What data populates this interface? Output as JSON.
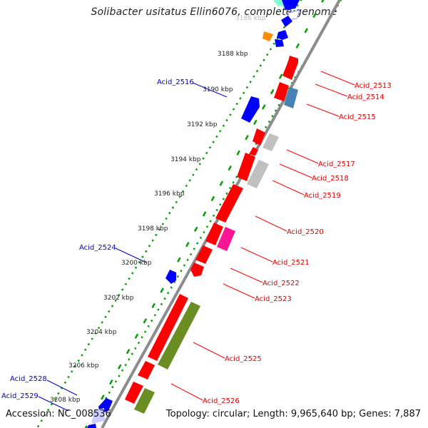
{
  "title": "Solibacter usitatus Ellin6076, complete genome",
  "accession": "Accession: NC_008536",
  "summary": "Topology: circular; Length: 9,965,640 bp; Genes: 7,887",
  "colors": {
    "backbone": "#8c8c8c",
    "forward_gene": "#0000ff",
    "reverse_gene": "#ff0000",
    "tick": "#00a000",
    "label_forward": "#0000cc",
    "label_reverse": "#dd0000",
    "feature_green": "#6b8e23",
    "feature_gray": "#b4b4b4",
    "feature_steel": "#4682b4",
    "feature_magenta": "#ff1493",
    "feature_orange": "#ff8c00",
    "feature_teal": "#40e0d0"
  },
  "scale_labels": [
    "3186 kbp",
    "3188 kbp",
    "3190 kbp",
    "3192 kbp",
    "3194 kbp",
    "3196 kbp",
    "3198 kbp",
    "3200 kbp",
    "3202 kbp",
    "3204 kbp",
    "3206 kbp",
    "3208 kbp"
  ],
  "gene_labels_reverse": [
    "Acid_2513",
    "Acid_2514",
    "Acid_2515",
    "Acid_2517",
    "Acid_2518",
    "Acid_2519",
    "Acid_2520",
    "Acid_2521",
    "Acid_2522",
    "Acid_2523",
    "Acid_2525",
    "Acid_2526"
  ],
  "gene_labels_forward": [
    "Acid_2516",
    "Acid_2524",
    "Acid_2528",
    "Acid_2529"
  ]
}
